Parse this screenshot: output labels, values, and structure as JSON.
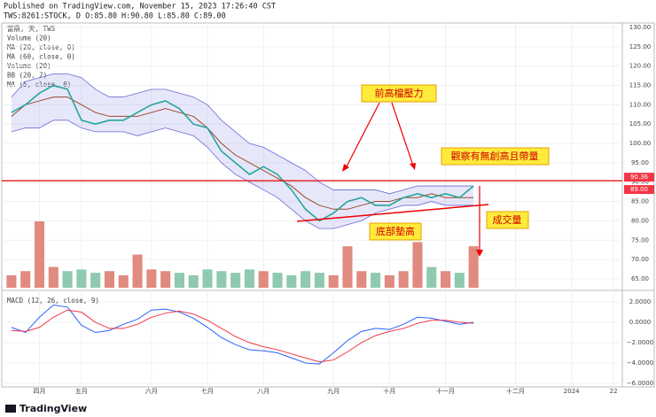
{
  "chart_data": {
    "type": "line",
    "published": "Published on TradingView.com, November 15, 2023 17:26:40 CST",
    "symbol": "TWS:8261:STOCK, D O:85.80 H:90.80 L:85.80 C:89.00",
    "indicators": [
      "富鼎, 天, TWS",
      "Volume (20)",
      "MA (20, close, 0)",
      "MA (60, close, 0)",
      "Volume (20)",
      "BB (20, 2)",
      "MA (5, close, 0)"
    ],
    "macd_label": "MACD (12, 26, close, 9)",
    "annotations": [
      "前高檔壓力",
      "觀察有無創高且帶量",
      "底部墊高",
      "成交量"
    ],
    "brand": "TradingView",
    "categories": [
      null,
      null,
      "四月",
      null,
      null,
      "五月",
      null,
      null,
      null,
      null,
      "六月",
      null,
      null,
      null,
      "七月",
      null,
      null,
      null,
      "八月",
      null,
      null,
      null,
      null,
      "九月",
      null,
      null,
      null,
      "十月",
      null,
      null,
      null,
      "十一月",
      null,
      null,
      null,
      null,
      "十二月",
      null,
      null,
      null,
      "2024",
      null,
      null,
      "22"
    ],
    "close": {
      "color": "#26a69a",
      "values": [
        108,
        110,
        113,
        115,
        114,
        106,
        105,
        106,
        106,
        108,
        110,
        111,
        109,
        105,
        104,
        98,
        95,
        92,
        94,
        92,
        88,
        83,
        80,
        82,
        85,
        86,
        84,
        84,
        86,
        87,
        86,
        87,
        86,
        89,
        null,
        null,
        null,
        null,
        null,
        null,
        null,
        null,
        null,
        null
      ]
    },
    "bb_upper": {
      "color": "#6a6ad8",
      "values": [
        112,
        116,
        117,
        118,
        118,
        117,
        114,
        112,
        112,
        113,
        114,
        114,
        113,
        112,
        110,
        106,
        103,
        100,
        99,
        97,
        95,
        93,
        90,
        88,
        88,
        88,
        88,
        87,
        88,
        89,
        89,
        89,
        89,
        89,
        null,
        null,
        null,
        null,
        null,
        null,
        null,
        null,
        null,
        null
      ]
    },
    "bb_lower": {
      "color": "#6a6ad8",
      "values": [
        103,
        104,
        104,
        106,
        106,
        104,
        103,
        103,
        103,
        102,
        103,
        104,
        103,
        102,
        99,
        95,
        92,
        90,
        88,
        86,
        83,
        80,
        78,
        78,
        79,
        80,
        82,
        83,
        84,
        84,
        85,
        84,
        84,
        84,
        null,
        null,
        null,
        null,
        null,
        null,
        null,
        null,
        null,
        null
      ]
    },
    "ma20": {
      "color": "#9a4a2a",
      "values": [
        107,
        110,
        111,
        112,
        112,
        110,
        108,
        107,
        107,
        107,
        108,
        109,
        108,
        107,
        104,
        100,
        97,
        95,
        93,
        91,
        89,
        86,
        84,
        83,
        83,
        84,
        85,
        85,
        86,
        86,
        87,
        86,
        86,
        86,
        null,
        null,
        null,
        null,
        null,
        null,
        null,
        null,
        null,
        null
      ]
    },
    "volume": {
      "up_color": "#e08a80",
      "down_color": "#8ec9b0",
      "values": [
        15,
        20,
        80,
        25,
        20,
        22,
        18,
        20,
        15,
        40,
        22,
        20,
        18,
        15,
        22,
        20,
        18,
        22,
        20,
        18,
        15,
        20,
        18,
        15,
        50,
        20,
        18,
        15,
        20,
        55,
        25,
        20,
        18,
        50,
        null,
        null,
        null,
        null,
        null,
        null,
        null,
        null,
        null,
        null
      ]
    },
    "macd": {
      "color": "#2962ff",
      "values": [
        -0.5,
        -1,
        0.5,
        1.7,
        1.5,
        -0.3,
        -1,
        -0.8,
        -0.2,
        0.3,
        1.2,
        1.3,
        1,
        0.4,
        -0.5,
        -1.5,
        -2.2,
        -2.7,
        -2.8,
        -3,
        -3.5,
        -4,
        -4.1,
        -3,
        -1.8,
        -0.9,
        -0.6,
        -0.7,
        -0.2,
        0.5,
        0.4,
        0.1,
        -0.2,
        0,
        null,
        null,
        null,
        null,
        null,
        null,
        null,
        null,
        null,
        null
      ]
    },
    "signal": {
      "color": "#f23645",
      "values": [
        -0.8,
        -0.9,
        -0.5,
        0.5,
        1.2,
        1,
        0,
        -0.6,
        -0.6,
        -0.2,
        0.5,
        0.9,
        1.1,
        0.8,
        0.2,
        -0.6,
        -1.4,
        -2,
        -2.4,
        -2.7,
        -3.1,
        -3.5,
        -3.9,
        -3.7,
        -2.9,
        -2,
        -1.3,
        -0.9,
        -0.6,
        -0.1,
        0.2,
        0.2,
        0,
        -0.1,
        null,
        null,
        null,
        null,
        null,
        null,
        null,
        null,
        null,
        null
      ]
    },
    "ylim": [
      62.7,
      130.9
    ],
    "yticks": [
      {
        "value": 130,
        "label": "130.00"
      },
      {
        "value": 125,
        "label": "125.00"
      },
      {
        "value": 120,
        "label": "120.00"
      },
      {
        "value": 115,
        "label": "115.00"
      },
      {
        "value": 110,
        "label": "110.00"
      },
      {
        "value": 105,
        "label": "105.00"
      },
      {
        "value": 100,
        "label": "100.00"
      },
      {
        "value": 95,
        "label": "95.00"
      },
      {
        "value": 90,
        "label": "90.00"
      },
      {
        "value": 85,
        "label": "85.00"
      },
      {
        "value": 80,
        "label": "80.00"
      },
      {
        "value": 75,
        "label": "75.00"
      },
      {
        "value": 70,
        "label": "70.00"
      },
      {
        "value": 65,
        "label": "65.00"
      }
    ],
    "y2lim": [
      -6.26,
      2.96
    ],
    "y2ticks": [
      {
        "value": 2,
        "label": "2.0000"
      },
      {
        "value": 0,
        "label": "0.0000"
      },
      {
        "value": -2,
        "label": "−2.0000"
      },
      {
        "value": -4,
        "label": "−4.0000"
      },
      {
        "value": -6,
        "label": "−6.0000"
      }
    ],
    "price_labels": [
      {
        "value": 90.36,
        "label": "90.36"
      },
      {
        "value": 89,
        "label": "89.00"
      }
    ],
    "grid": true
  }
}
